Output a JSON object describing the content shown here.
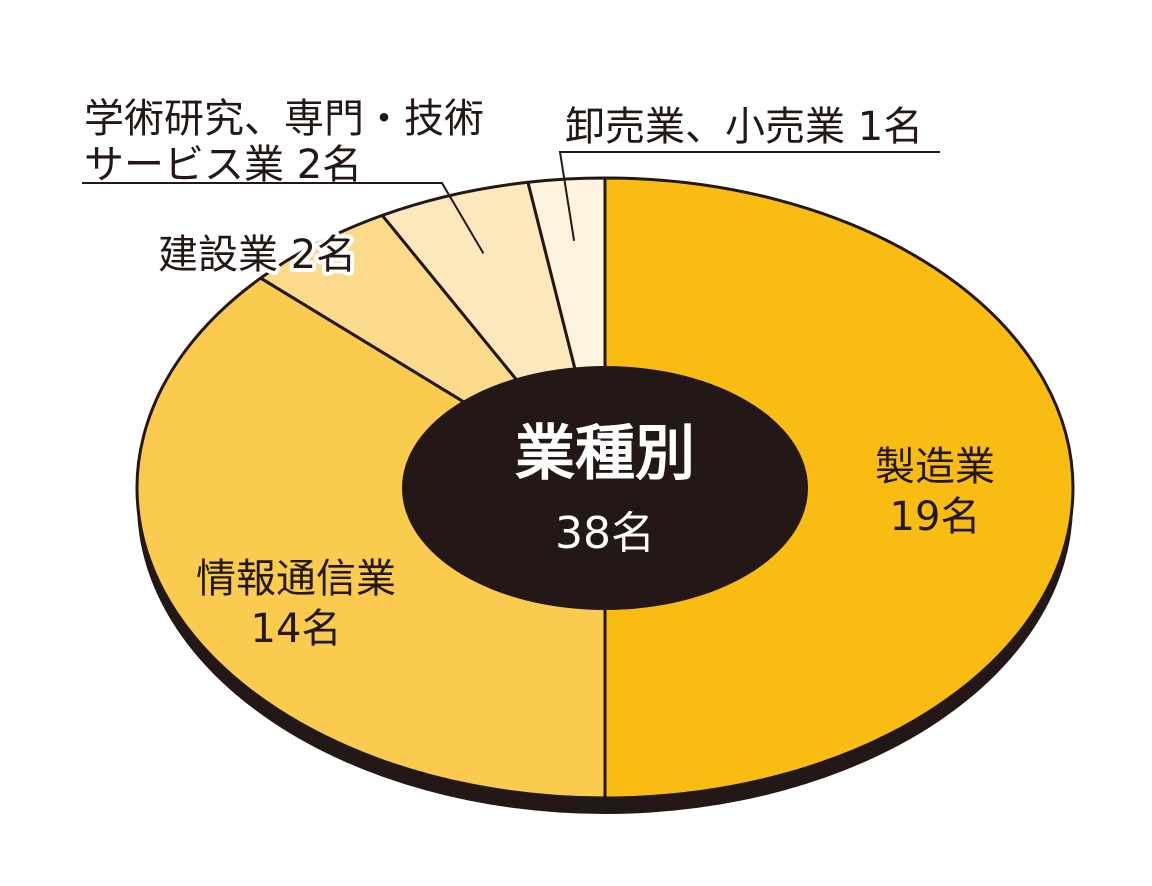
{
  "chart_data": {
    "type": "pie",
    "center_label": "業種別",
    "center_total": "38名",
    "unit": "名",
    "slices": [
      {
        "key": "manufacturing",
        "label": "製造業",
        "label_lines": [
          "製造業",
          "19名"
        ],
        "value": 19,
        "color": "#F8BC13"
      },
      {
        "key": "it",
        "label": "情報通信業",
        "label_lines": [
          "情報通信業",
          "14名"
        ],
        "value": 14,
        "color": "#FACB4E"
      },
      {
        "key": "construction",
        "label": "建設業",
        "label_lines": [
          "建設業 2名"
        ],
        "value": 2,
        "color": "#FCDA8B"
      },
      {
        "key": "academic",
        "label": "学術研究、専門・技術サービス業",
        "label_lines": [
          "学術研究、専門・技術",
          "サービス業 2名"
        ],
        "value": 2,
        "color": "#FDE8BE"
      },
      {
        "key": "retail",
        "label": "卸売業、小売業",
        "label_lines": [
          "卸売業、小売業 1名"
        ],
        "value": 1,
        "color": "#FEF3DF"
      }
    ],
    "colors": {
      "outline": "#231815",
      "center": "#231815",
      "center_text": "#ffffff"
    }
  }
}
